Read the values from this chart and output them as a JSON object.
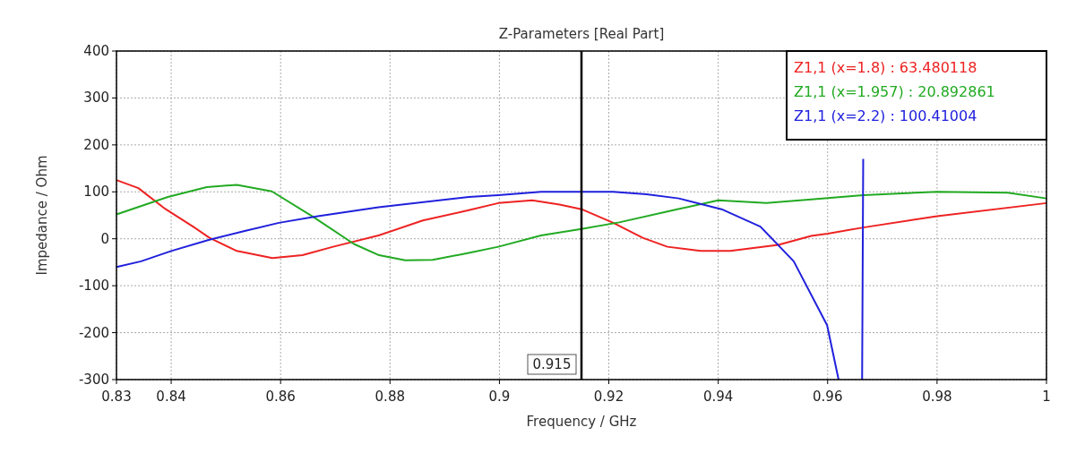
{
  "chart_data": {
    "type": "line",
    "title": "Z-Parameters [Real Part]",
    "xlabel": "Frequency / GHz",
    "ylabel": "Impedance / Ohm",
    "xlim": [
      0.83,
      1
    ],
    "xticks": [
      0.83,
      0.84,
      0.86,
      0.88,
      0.9,
      0.92,
      0.94,
      0.96,
      0.98,
      1
    ],
    "ylim": [
      -300,
      400
    ],
    "yticks": [
      -300,
      -200,
      -100,
      0,
      100,
      200,
      300,
      400
    ],
    "grid": true,
    "legend": "top right",
    "marker": "none",
    "line_style": "solid",
    "ref_lines": [
      {
        "axis": "x",
        "value": 0.915,
        "label": "0.915",
        "color": "#000000"
      }
    ],
    "series": [
      {
        "name": "Z1,1 (x=1.8) : 63.480118",
        "color": "#ee2222",
        "x": [
          0.83,
          0.834,
          0.839,
          0.844,
          0.847,
          0.852,
          0.8585,
          0.864,
          0.8696,
          0.8779,
          0.886,
          0.8944,
          0.8998,
          0.906,
          0.911,
          0.915,
          0.9208,
          0.9262,
          0.9307,
          0.9368,
          0.9422,
          0.951,
          0.957,
          0.96,
          0.9665,
          0.98,
          1
        ],
        "values": [
          125,
          108,
          63,
          26,
          2,
          -26,
          -41,
          -35,
          -17,
          7,
          39,
          61,
          76,
          82,
          73,
          63,
          34,
          2,
          -17,
          -26,
          -26,
          -13,
          6,
          11,
          24,
          48,
          76
        ]
      },
      {
        "name": "Z1,1 (x=1.957) : 20.892861",
        "color": "#22aa22",
        "x": [
          0.83,
          0.8394,
          0.8465,
          0.852,
          0.8584,
          0.8658,
          0.8734,
          0.878,
          0.8828,
          0.8878,
          0.8944,
          0.8998,
          0.9076,
          0.915,
          0.9219,
          0.9318,
          0.94,
          0.9488,
          0.957,
          0.9665,
          0.98,
          0.9929,
          1
        ],
        "values": [
          52,
          89,
          110,
          115,
          101,
          48,
          -11,
          -35,
          -46,
          -45,
          -30,
          -17,
          7,
          21,
          35,
          61,
          82,
          76,
          84,
          93,
          100,
          98,
          86
        ]
      },
      {
        "name": "Z1,1 (x=2.2) : 100.41004",
        "color": "#2020dd",
        "x": [
          0.83,
          0.8345,
          0.84,
          0.847,
          0.8536,
          0.8597,
          0.8668,
          0.8779,
          0.8944,
          0.8998,
          0.9076,
          0.915,
          0.9208,
          0.9269,
          0.9328,
          0.9406,
          0.9477,
          0.9538,
          0.9599,
          0.962,
          0.964,
          0.9663,
          0.9665
        ],
        "values": [
          -60,
          -48,
          -26,
          -2,
          17,
          34,
          48,
          67,
          89,
          93,
          100,
          100,
          100,
          95,
          86,
          63,
          26,
          -48,
          -184,
          -300,
          null,
          -300,
          170
        ]
      }
    ]
  }
}
